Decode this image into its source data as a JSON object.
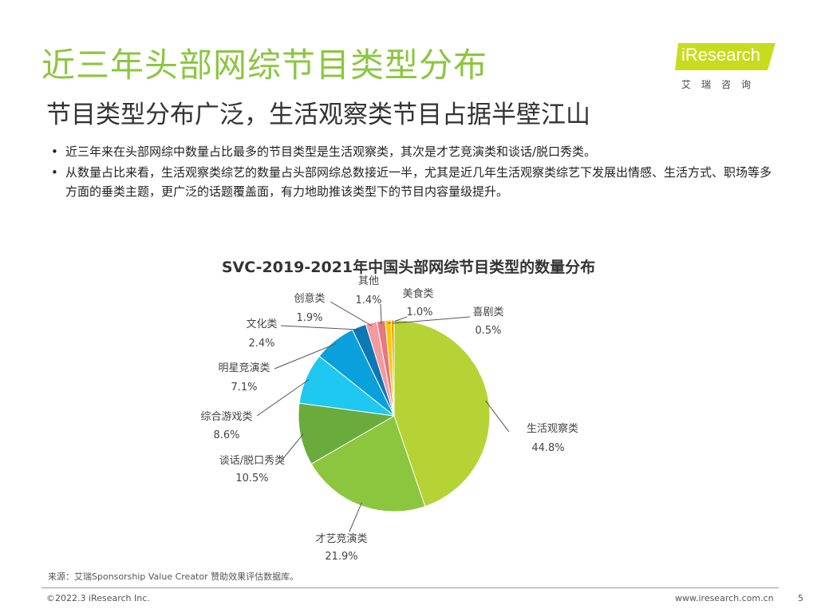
{
  "header": {
    "title": "近三年头部网综节目类型分布",
    "subtitle": "节目类型分布广泛，生活观察类节目占据半壁江山"
  },
  "logo": {
    "brand": "iResearch",
    "cn": "艾瑞咨询",
    "colors": {
      "badge": "#c8dc1e",
      "text": "#ffffff"
    }
  },
  "bullets": [
    "近三年来在头部网综中数量占比最多的节目类型是生活观察类，其次是才艺竞演类和谈话/脱口秀类。",
    "从数量占比来看，生活观察类综艺的数量占头部网综总数接近一半，尤其是近几年生活观察类综艺下发展出情感、生活方式、职场等多方面的垂类主题，更广泛的话题覆盖面，有力地助推该类型下的节目内容量级提升。"
  ],
  "bullet_symbol": "•",
  "chart_data": {
    "type": "pie",
    "title": "SVC-2019-2021年中国头部网综节目类型的数量分布",
    "unit": "%",
    "start": "12 o'clock, clockwise",
    "slices": [
      {
        "label": "生活观察类",
        "value": 44.8,
        "display": "44.8%",
        "color": "#b5d334"
      },
      {
        "label": "才艺竞演类",
        "value": 21.9,
        "display": "21.9%",
        "color": "#8cc63f"
      },
      {
        "label": "谈话/脱口秀类",
        "value": 10.5,
        "display": "10.5%",
        "color": "#6aab3e"
      },
      {
        "label": "综合游戏类",
        "value": 8.6,
        "display": "8.6%",
        "color": "#1ec8f0"
      },
      {
        "label": "明星竞演类",
        "value": 7.1,
        "display": "7.1%",
        "color": "#0aa0dc"
      },
      {
        "label": "文化类",
        "value": 2.4,
        "display": "2.4%",
        "color": "#0c78b4"
      },
      {
        "label": "创意类",
        "value": 1.9,
        "display": "1.9%",
        "color": "#f39aa0"
      },
      {
        "label": "其他",
        "value": 1.4,
        "display": "1.4%",
        "color": "#e6787e"
      },
      {
        "label": "美食类",
        "value": 1.0,
        "display": "1.0%",
        "color": "#fcc800"
      },
      {
        "label": "喜剧类",
        "value": 0.5,
        "display": "0.5%",
        "color": "#f4a000"
      }
    ]
  },
  "source": "来源：艾瑞Sponsorship Value Creator 赞助效果评估数据库。",
  "footer": {
    "copyright": "©2022.3 iResearch Inc.",
    "website": "www.iresearch.com.cn",
    "page": "5"
  }
}
